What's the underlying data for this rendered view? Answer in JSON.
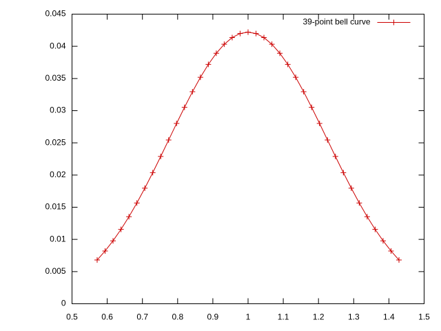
{
  "chart_data": {
    "type": "line",
    "legend_position": "top-right",
    "grid": false,
    "x": [
      0.5714,
      0.594,
      0.6165,
      0.6391,
      0.6617,
      0.6842,
      0.7068,
      0.7293,
      0.7519,
      0.7744,
      0.797,
      0.8195,
      0.8421,
      0.8647,
      0.8872,
      0.9098,
      0.9323,
      0.9549,
      0.9774,
      1.0,
      1.0226,
      1.0451,
      1.0677,
      1.0902,
      1.1128,
      1.1353,
      1.1579,
      1.1805,
      1.203,
      1.2256,
      1.2481,
      1.2707,
      1.2932,
      1.3158,
      1.3383,
      1.3609,
      1.3835,
      1.406,
      1.4286
    ],
    "series": [
      {
        "name": "39-point bell curve",
        "color": "#cc0000",
        "marker": "plus",
        "values": [
          0.0068,
          0.0082,
          0.00978,
          0.01156,
          0.01353,
          0.01566,
          0.01796,
          0.02037,
          0.02289,
          0.02544,
          0.02802,
          0.03052,
          0.03294,
          0.03518,
          0.03719,
          0.03892,
          0.04032,
          0.04136,
          0.04199,
          0.0422,
          0.04199,
          0.04136,
          0.04032,
          0.03892,
          0.03719,
          0.03518,
          0.03294,
          0.03052,
          0.02802,
          0.02544,
          0.02289,
          0.02037,
          0.01796,
          0.01566,
          0.01353,
          0.01156,
          0.00978,
          0.0082,
          0.0068
        ]
      }
    ],
    "xlim": [
      0.5,
      1.5
    ],
    "xticks": [
      0.5,
      0.6,
      0.7,
      0.8,
      0.9,
      1,
      1.1,
      1.2,
      1.3,
      1.4,
      1.5
    ],
    "ylim": [
      0,
      0.045
    ],
    "yticks": [
      0,
      0.005,
      0.01,
      0.015,
      0.02,
      0.025,
      0.03,
      0.035,
      0.04,
      0.045
    ]
  }
}
